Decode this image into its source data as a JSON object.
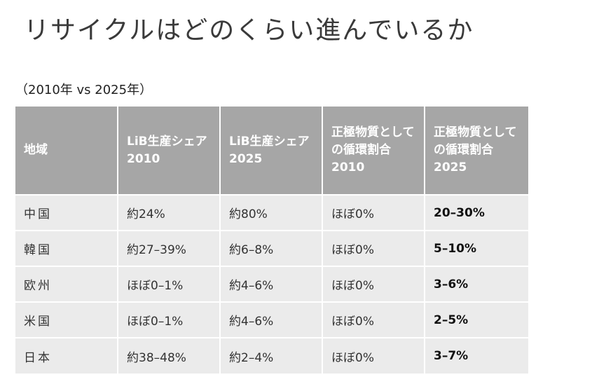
{
  "page": {
    "title": "リサイクルはどのくらい進んでいるか",
    "subtitle": "（2010年 vs 2025年）"
  },
  "table": {
    "headers": [
      "地域",
      "LiB生産シェア 2010",
      "LiB生産シェア 2025",
      "正極物質としての循環割合 2010",
      "正極物質としての循環割合 2025"
    ],
    "rows": [
      [
        "中国",
        "約24%",
        "約80%",
        "ほぼ0%",
        "20–30%"
      ],
      [
        "韓国",
        "約27–39%",
        "約6–8%",
        "ほぼ0%",
        "5–10%"
      ],
      [
        "欧州",
        "ほぼ0–1%",
        "約4–6%",
        "ほぼ0%",
        "3–6%"
      ],
      [
        "米国",
        "ほぼ0–1%",
        "約4–6%",
        "ほぼ0%",
        "2–5%"
      ],
      [
        "日本",
        "約38–48%",
        "約2–4%",
        "ほぼ0%",
        "3–7%"
      ]
    ]
  },
  "colors": {
    "header_bg": "#a6a6a6",
    "row_bg": "#ebebeb"
  }
}
